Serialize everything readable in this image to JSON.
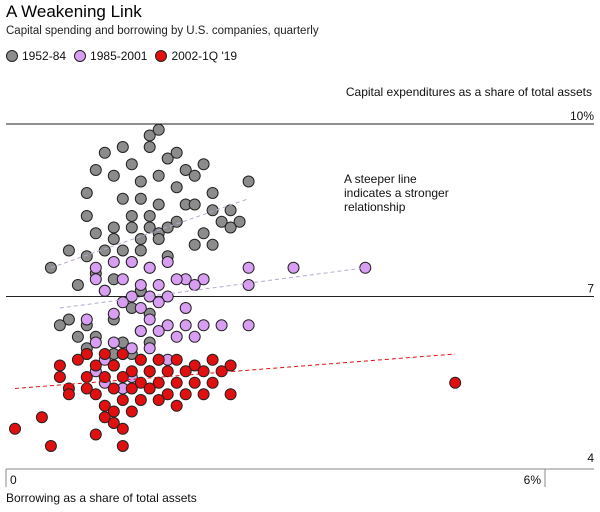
{
  "title": "A Weakening Link",
  "subtitle": "Capital spending and borrowing by U.S. companies, quarterly",
  "legend": [
    {
      "label": "1952-84",
      "color": "#8c8c8c"
    },
    {
      "label": "1985-2001",
      "color": "#d89ef2"
    },
    {
      "label": "2002-1Q '19",
      "color": "#e01010"
    }
  ],
  "ylabel": "Capital expenditures as a share of total assets",
  "xlabel": "Borrowing as a share of total assets",
  "annotation": "A steeper line indicates a stronger relationship",
  "chart_data": {
    "type": "scatter",
    "title": "A Weakening Link",
    "xlabel": "Borrowing as a share of total assets",
    "ylabel": "Capital expenditures as a share of total assets",
    "xlim": [
      0,
      6
    ],
    "ylim": [
      4,
      10
    ],
    "x_ticks": [
      "0",
      "6%"
    ],
    "y_ticks": [
      "4",
      "7",
      "10%"
    ],
    "grid": "horizontal",
    "series": [
      {
        "name": "1952-84",
        "color": "#8c8c8c",
        "trend": [
          [
            0.5,
            7.5
          ],
          [
            2.7,
            8.7
          ]
        ],
        "points": [
          [
            1.6,
            9.8
          ],
          [
            1.7,
            9.9
          ],
          [
            1.1,
            9.5
          ],
          [
            1.3,
            9.6
          ],
          [
            1.6,
            9.6
          ],
          [
            1.8,
            9.4
          ],
          [
            1.9,
            9.5
          ],
          [
            1.2,
            9.1
          ],
          [
            1.0,
            9.2
          ],
          [
            1.4,
            9.3
          ],
          [
            1.7,
            9.1
          ],
          [
            2.0,
            9.2
          ],
          [
            2.1,
            9.1
          ],
          [
            2.2,
            9.3
          ],
          [
            1.5,
            9.0
          ],
          [
            1.9,
            8.9
          ],
          [
            2.3,
            8.8
          ],
          [
            2.7,
            9.0
          ],
          [
            0.9,
            8.8
          ],
          [
            1.3,
            8.7
          ],
          [
            1.5,
            8.7
          ],
          [
            1.7,
            8.6
          ],
          [
            2.0,
            8.6
          ],
          [
            2.1,
            8.6
          ],
          [
            2.3,
            8.5
          ],
          [
            2.5,
            8.5
          ],
          [
            0.9,
            8.4
          ],
          [
            1.4,
            8.4
          ],
          [
            1.6,
            8.4
          ],
          [
            1.9,
            8.3
          ],
          [
            2.4,
            8.3
          ],
          [
            2.6,
            8.3
          ],
          [
            1.2,
            8.2
          ],
          [
            1.4,
            8.2
          ],
          [
            1.6,
            8.2
          ],
          [
            1.7,
            8.1
          ],
          [
            1.8,
            8.2
          ],
          [
            2.2,
            8.1
          ],
          [
            2.5,
            8.2
          ],
          [
            1.0,
            8.1
          ],
          [
            1.2,
            8.0
          ],
          [
            1.5,
            8.0
          ],
          [
            1.7,
            8.0
          ],
          [
            2.1,
            7.9
          ],
          [
            2.3,
            7.9
          ],
          [
            0.7,
            7.8
          ],
          [
            1.1,
            7.8
          ],
          [
            1.3,
            7.8
          ],
          [
            1.5,
            7.8
          ],
          [
            1.8,
            7.7
          ],
          [
            0.9,
            7.7
          ],
          [
            1.4,
            7.6
          ],
          [
            1.6,
            7.5
          ],
          [
            0.5,
            7.5
          ],
          [
            1.0,
            7.4
          ],
          [
            1.2,
            7.3
          ],
          [
            0.8,
            7.2
          ],
          [
            1.1,
            7.1
          ],
          [
            1.5,
            7.1
          ],
          [
            1.4,
            6.8
          ],
          [
            1.6,
            6.7
          ],
          [
            0.7,
            6.6
          ],
          [
            0.9,
            6.5
          ],
          [
            1.2,
            6.6
          ],
          [
            0.6,
            6.5
          ],
          [
            1.5,
            6.4
          ],
          [
            0.8,
            6.3
          ],
          [
            1.0,
            6.3
          ],
          [
            1.3,
            6.2
          ],
          [
            1.6,
            6.2
          ],
          [
            0.9,
            6.1
          ],
          [
            1.4,
            6.0
          ],
          [
            1.2,
            6.0
          ],
          [
            1.7,
            5.9
          ]
        ]
      },
      {
        "name": "1985-2001",
        "color": "#d89ef2",
        "trend": [
          [
            0.6,
            6.8
          ],
          [
            4.0,
            7.5
          ]
        ],
        "points": [
          [
            3.2,
            7.5
          ],
          [
            4.0,
            7.5
          ],
          [
            1.0,
            7.5
          ],
          [
            1.2,
            7.6
          ],
          [
            1.4,
            7.6
          ],
          [
            1.6,
            7.5
          ],
          [
            1.8,
            7.6
          ],
          [
            2.0,
            7.3
          ],
          [
            2.2,
            7.3
          ],
          [
            2.7,
            7.5
          ],
          [
            1.0,
            7.3
          ],
          [
            1.3,
            7.3
          ],
          [
            1.5,
            7.2
          ],
          [
            1.7,
            7.2
          ],
          [
            1.9,
            7.3
          ],
          [
            2.1,
            7.2
          ],
          [
            1.1,
            7.1
          ],
          [
            1.4,
            7.0
          ],
          [
            1.6,
            7.0
          ],
          [
            1.8,
            7.0
          ],
          [
            2.7,
            7.2
          ],
          [
            1.3,
            6.9
          ],
          [
            1.5,
            6.8
          ],
          [
            1.7,
            6.9
          ],
          [
            2.0,
            6.8
          ],
          [
            1.2,
            6.7
          ],
          [
            1.6,
            6.6
          ],
          [
            0.9,
            6.6
          ],
          [
            1.8,
            6.5
          ],
          [
            2.0,
            6.5
          ],
          [
            2.2,
            6.5
          ],
          [
            2.4,
            6.5
          ],
          [
            2.7,
            6.5
          ],
          [
            1.5,
            6.4
          ],
          [
            1.7,
            6.4
          ],
          [
            1.9,
            6.3
          ],
          [
            2.1,
            6.3
          ],
          [
            1.0,
            6.2
          ],
          [
            1.2,
            6.2
          ],
          [
            1.4,
            6.1
          ],
          [
            1.6,
            6.1
          ],
          [
            0.9,
            6.0
          ],
          [
            1.1,
            5.9
          ],
          [
            1.3,
            6.0
          ],
          [
            1.5,
            5.9
          ],
          [
            1.8,
            5.9
          ],
          [
            1.0,
            5.7
          ],
          [
            1.2,
            5.8
          ],
          [
            1.4,
            5.6
          ],
          [
            1.6,
            5.7
          ],
          [
            1.1,
            5.5
          ],
          [
            1.3,
            5.4
          ]
        ]
      },
      {
        "name": "2002-1Q '19",
        "color": "#e01010",
        "trend": [
          [
            0.1,
            5.4
          ],
          [
            5.0,
            6.0
          ]
        ],
        "points": [
          [
            0.9,
            6.0
          ],
          [
            1.1,
            6.0
          ],
          [
            1.3,
            6.0
          ],
          [
            1.5,
            5.9
          ],
          [
            1.7,
            5.9
          ],
          [
            1.9,
            5.9
          ],
          [
            2.1,
            5.8
          ],
          [
            2.3,
            5.9
          ],
          [
            2.5,
            5.8
          ],
          [
            0.6,
            5.8
          ],
          [
            0.8,
            5.9
          ],
          [
            1.0,
            5.8
          ],
          [
            1.2,
            5.8
          ],
          [
            1.4,
            5.7
          ],
          [
            1.6,
            5.7
          ],
          [
            1.8,
            5.7
          ],
          [
            2.0,
            5.7
          ],
          [
            2.2,
            5.7
          ],
          [
            2.4,
            5.7
          ],
          [
            0.6,
            5.6
          ],
          [
            0.9,
            5.6
          ],
          [
            1.1,
            5.6
          ],
          [
            1.3,
            5.6
          ],
          [
            1.5,
            5.5
          ],
          [
            1.7,
            5.5
          ],
          [
            1.9,
            5.5
          ],
          [
            2.1,
            5.5
          ],
          [
            2.3,
            5.5
          ],
          [
            5.0,
            5.5
          ],
          [
            0.7,
            5.4
          ],
          [
            0.9,
            5.4
          ],
          [
            1.2,
            5.4
          ],
          [
            1.4,
            5.4
          ],
          [
            1.6,
            5.4
          ],
          [
            1.8,
            5.3
          ],
          [
            2.0,
            5.3
          ],
          [
            2.2,
            5.3
          ],
          [
            2.5,
            5.3
          ],
          [
            0.7,
            5.3
          ],
          [
            1.0,
            5.3
          ],
          [
            1.3,
            5.2
          ],
          [
            1.5,
            5.2
          ],
          [
            1.7,
            5.2
          ],
          [
            1.9,
            5.1
          ],
          [
            1.1,
            5.1
          ],
          [
            1.2,
            5.0
          ],
          [
            1.4,
            5.0
          ],
          [
            1.1,
            4.9
          ],
          [
            0.4,
            4.9
          ],
          [
            1.2,
            4.8
          ],
          [
            1.3,
            4.7
          ],
          [
            0.1,
            4.7
          ],
          [
            1.0,
            4.6
          ],
          [
            0.5,
            4.4
          ],
          [
            1.3,
            4.4
          ]
        ]
      }
    ]
  }
}
